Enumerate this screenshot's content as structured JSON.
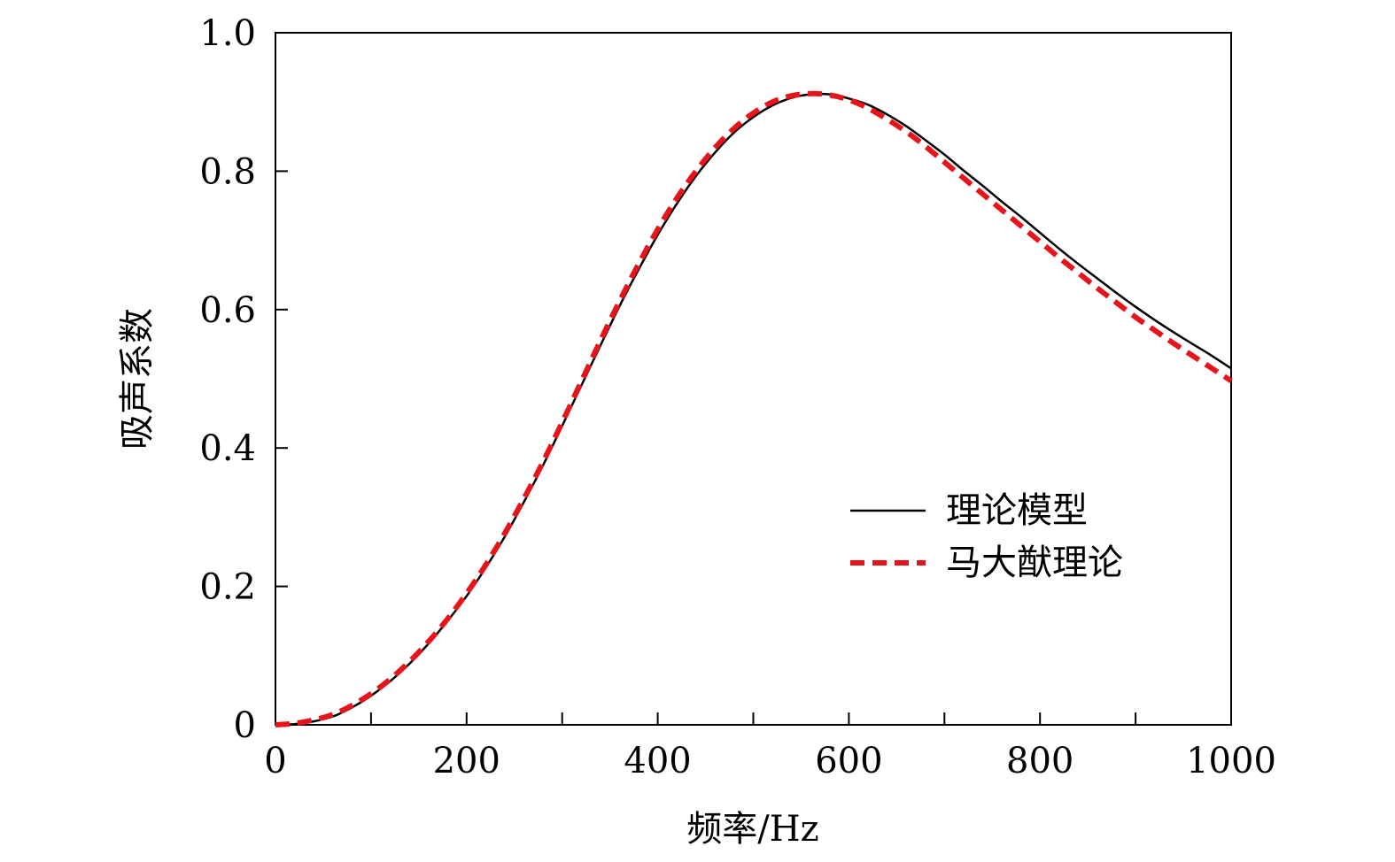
{
  "chart_data": {
    "type": "line",
    "title": "",
    "xlabel": "频率/Hz",
    "ylabel": "吸声系数",
    "xlim": [
      0,
      1000
    ],
    "ylim": [
      0,
      1.0
    ],
    "xticks": [
      0,
      200,
      400,
      600,
      800,
      1000
    ],
    "xtick_labels": [
      "0",
      "200",
      "400",
      "600",
      "800",
      "1000"
    ],
    "xminor": [
      100,
      300,
      500,
      700,
      900
    ],
    "yticks": [
      0,
      0.2,
      0.4,
      0.6,
      0.8,
      1.0
    ],
    "ytick_labels": [
      "0",
      "0.2",
      "0.4",
      "0.6",
      "0.8",
      "1.0"
    ],
    "grid": false,
    "legend_position": "center-right",
    "x": [
      0,
      20,
      40,
      60,
      80,
      100,
      120,
      140,
      160,
      180,
      200,
      220,
      240,
      260,
      280,
      300,
      320,
      340,
      360,
      380,
      400,
      420,
      440,
      460,
      480,
      500,
      520,
      540,
      560,
      580,
      600,
      620,
      640,
      660,
      680,
      700,
      720,
      740,
      760,
      780,
      800,
      820,
      840,
      860,
      880,
      900,
      920,
      940,
      960,
      980,
      1000
    ],
    "series": [
      {
        "name": "理论模型",
        "color": "#000000",
        "style": "solid",
        "values": [
          0.0,
          0.001,
          0.005,
          0.012,
          0.025,
          0.042,
          0.063,
          0.088,
          0.117,
          0.15,
          0.186,
          0.227,
          0.272,
          0.322,
          0.375,
          0.432,
          0.49,
          0.548,
          0.605,
          0.658,
          0.708,
          0.753,
          0.793,
          0.827,
          0.856,
          0.878,
          0.895,
          0.906,
          0.911,
          0.911,
          0.905,
          0.896,
          0.882,
          0.865,
          0.845,
          0.824,
          0.801,
          0.779,
          0.756,
          0.734,
          0.711,
          0.688,
          0.666,
          0.645,
          0.624,
          0.604,
          0.585,
          0.567,
          0.55,
          0.533,
          0.515
        ]
      },
      {
        "name": "马大猷理论",
        "color": "#e8141c",
        "style": "dashed",
        "values": [
          0.0,
          0.002,
          0.007,
          0.015,
          0.028,
          0.045,
          0.066,
          0.091,
          0.12,
          0.153,
          0.19,
          0.231,
          0.277,
          0.327,
          0.38,
          0.437,
          0.496,
          0.555,
          0.612,
          0.666,
          0.716,
          0.761,
          0.8,
          0.834,
          0.862,
          0.884,
          0.9,
          0.909,
          0.912,
          0.91,
          0.903,
          0.891,
          0.875,
          0.857,
          0.836,
          0.813,
          0.79,
          0.767,
          0.744,
          0.721,
          0.698,
          0.675,
          0.653,
          0.631,
          0.61,
          0.589,
          0.57,
          0.551,
          0.533,
          0.515,
          0.497
        ]
      }
    ]
  }
}
